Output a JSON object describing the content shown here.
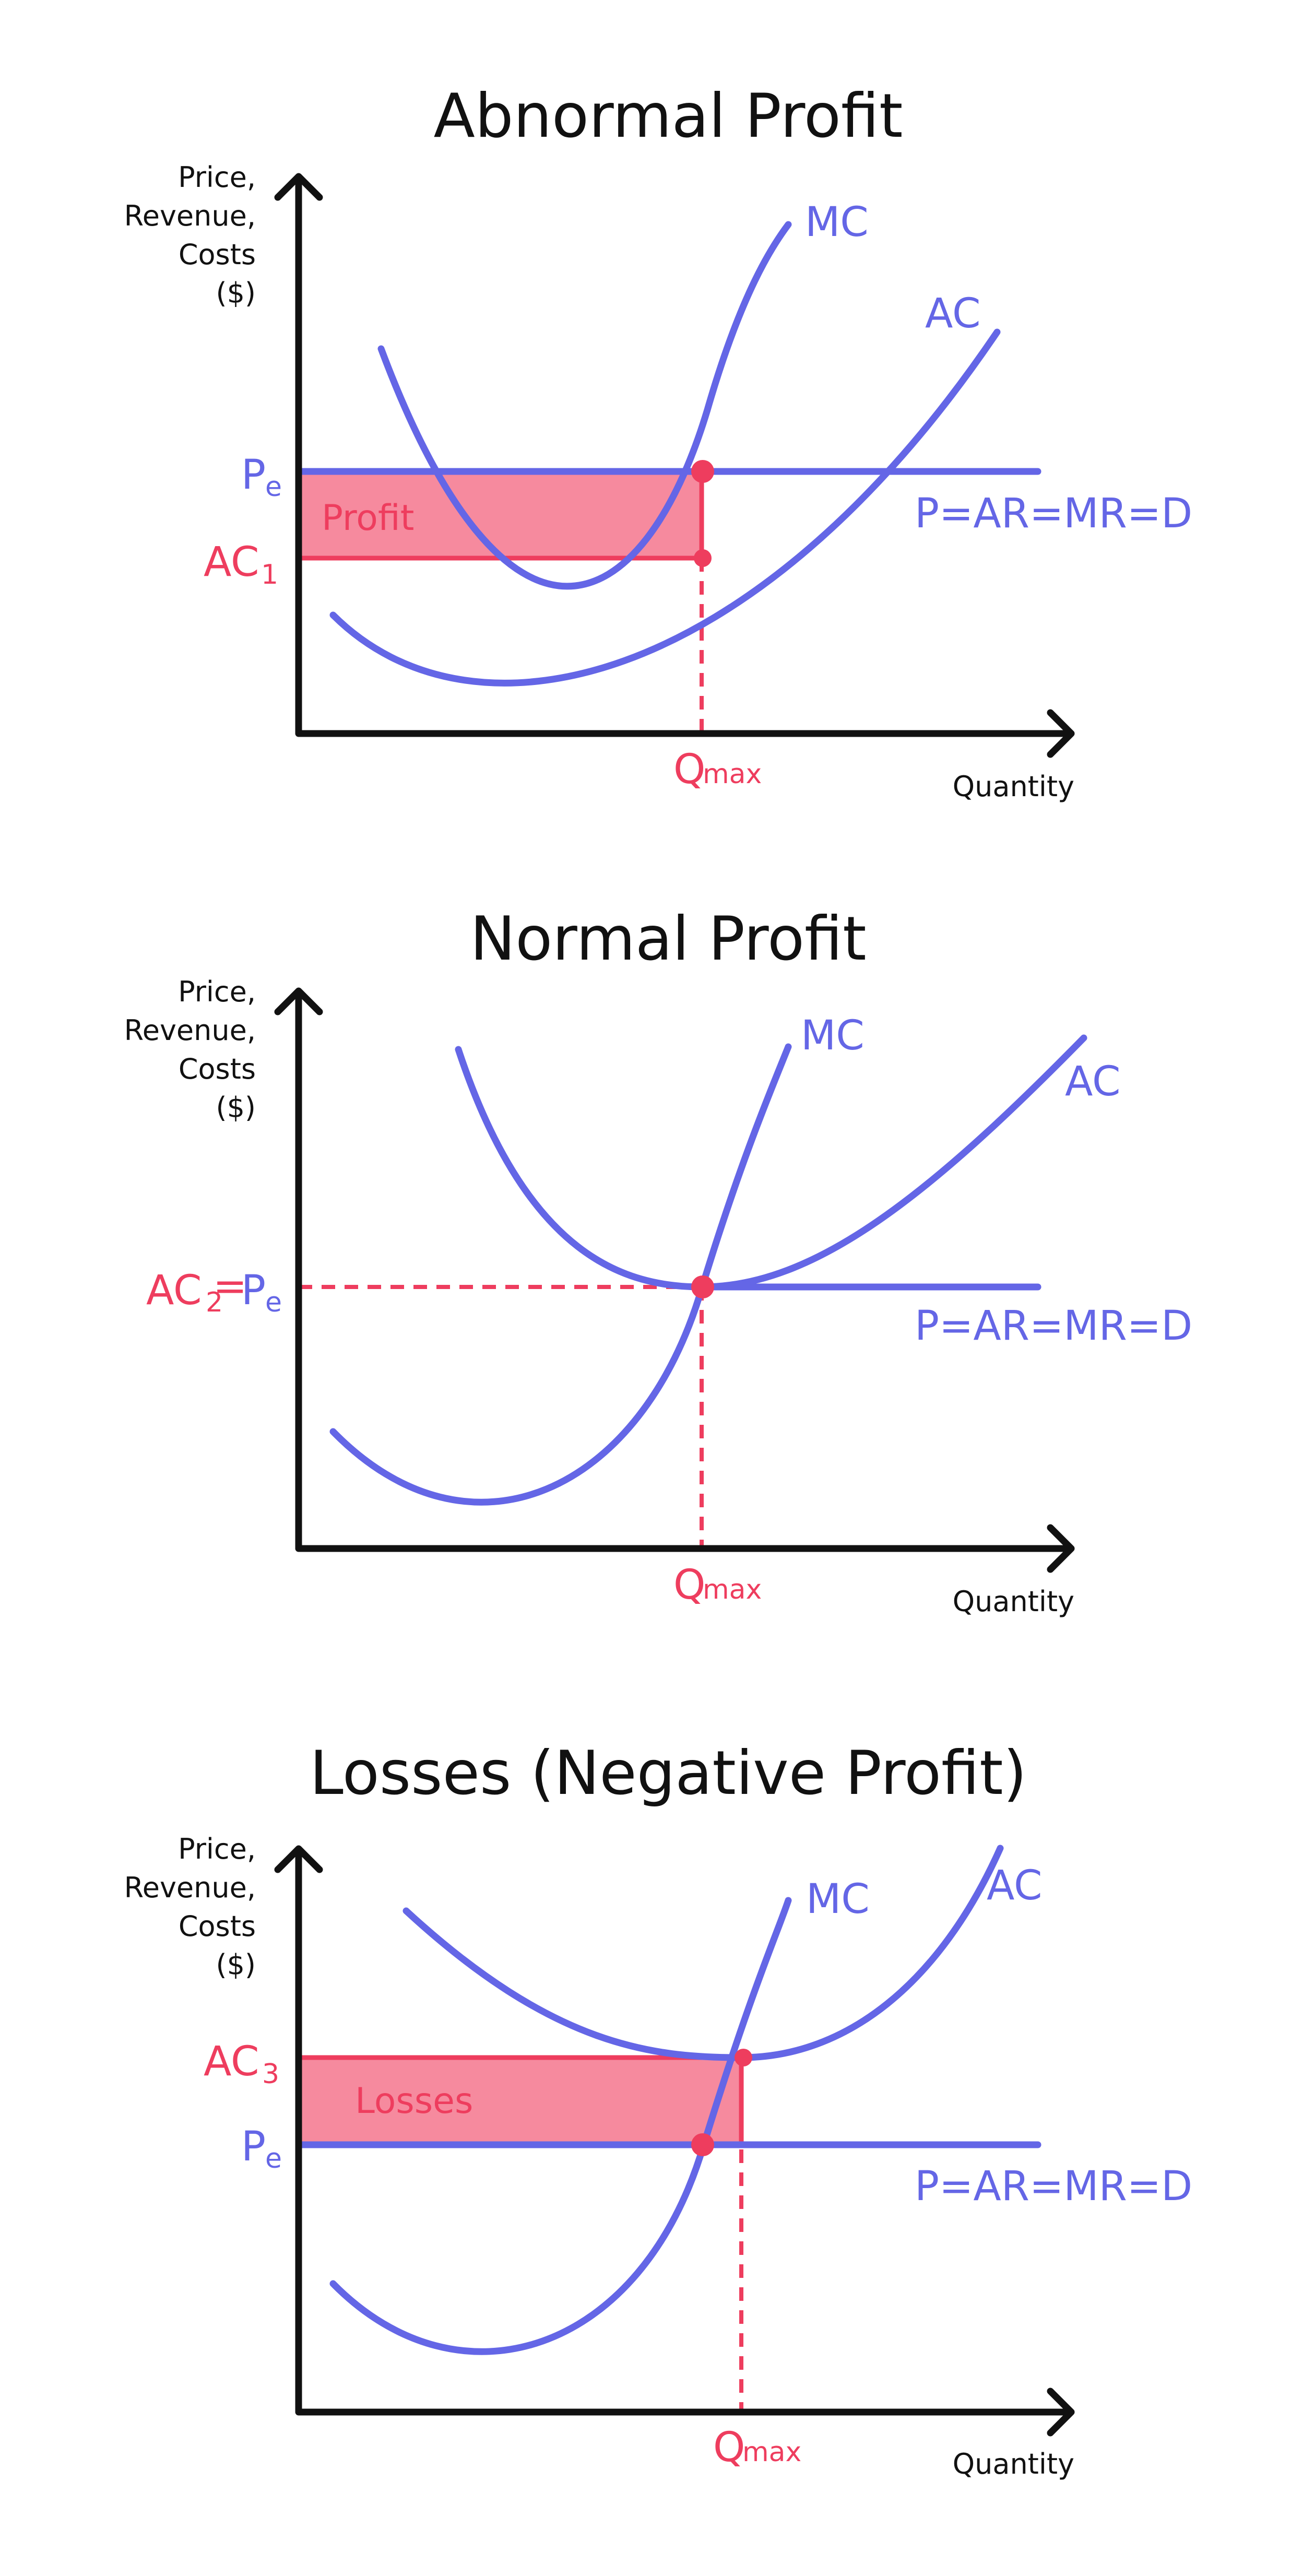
{
  "colors": {
    "curve": "#6466e6",
    "highlight": "#ee3d5e",
    "region_fill": "#f68a9e",
    "axis": "#111111"
  },
  "axis_labels": {
    "y": [
      "Price,",
      "Revenue,",
      "Costs",
      "($)"
    ],
    "x": "Quantity"
  },
  "diagrams": [
    {
      "title": "Abnormal Profit",
      "mc_label": "MC",
      "ac_label": "AC",
      "demand_label": "P=AR=MR=D",
      "price_label": "P",
      "price_sub": "e",
      "cost_label": "AC",
      "cost_sub": "1",
      "q_label": "Q",
      "q_sub": "max",
      "region_label": "Profit"
    },
    {
      "title": "Normal Profit",
      "mc_label": "MC",
      "ac_label": "AC",
      "demand_label": "P=AR=MR=D",
      "price_label": "P",
      "price_sub": "e",
      "cost_label": "AC",
      "cost_sub": "2",
      "equals": "=",
      "q_label": "Q",
      "q_sub": "max"
    },
    {
      "title": "Losses (Negative Profit)",
      "mc_label": "MC",
      "ac_label": "AC",
      "demand_label": "P=AR=MR=D",
      "price_label": "P",
      "price_sub": "e",
      "cost_label": "AC",
      "cost_sub": "3",
      "q_label": "Q",
      "q_sub": "max",
      "region_label": "Losses"
    }
  ]
}
